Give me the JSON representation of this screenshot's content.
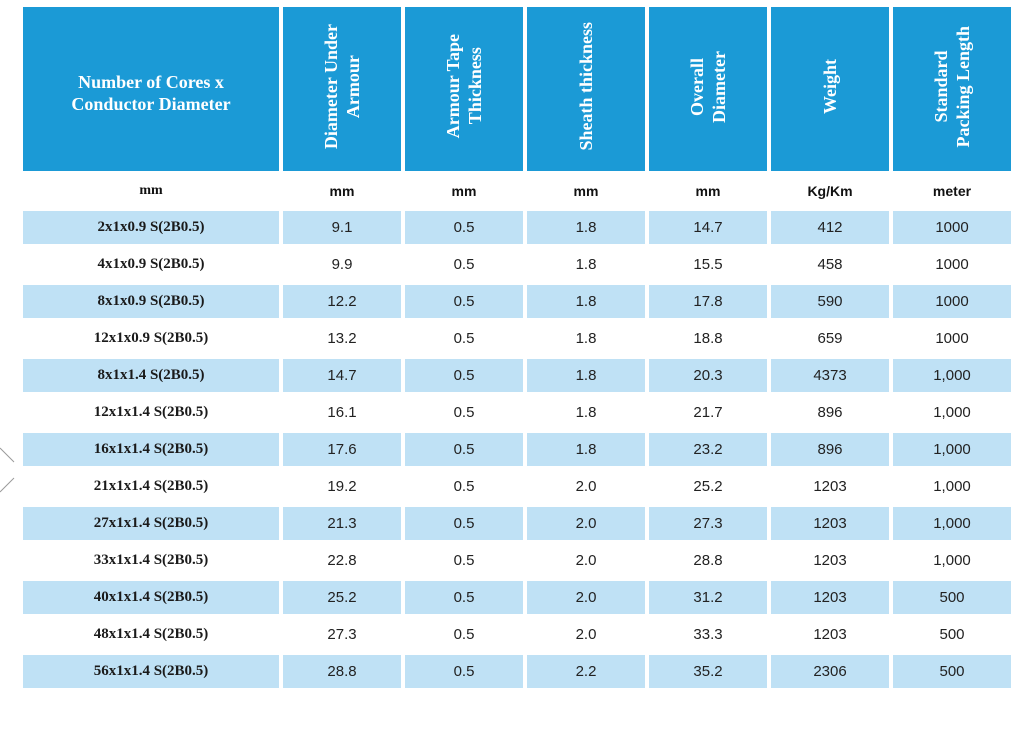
{
  "table": {
    "headers": [
      "Number of Cores x\nConductor Diameter",
      "Diameter Under\nArmour",
      "Armour Tape\nThickness",
      "Sheath thickness",
      "Overall\nDiameter",
      "Weight",
      "Standard\nPacking Length"
    ],
    "units": [
      "mm",
      "mm",
      "mm",
      "mm",
      "mm",
      "Kg/Km",
      "meter"
    ],
    "rows": [
      [
        "2x1x0.9 S(2B0.5)",
        "9.1",
        "0.5",
        "1.8",
        "14.7",
        "412",
        "1000"
      ],
      [
        "4x1x0.9 S(2B0.5)",
        "9.9",
        "0.5",
        "1.8",
        "15.5",
        "458",
        "1000"
      ],
      [
        "8x1x0.9 S(2B0.5)",
        "12.2",
        "0.5",
        "1.8",
        "17.8",
        "590",
        "1000"
      ],
      [
        "12x1x0.9 S(2B0.5)",
        "13.2",
        "0.5",
        "1.8",
        "18.8",
        "659",
        "1000"
      ],
      [
        "8x1x1.4 S(2B0.5)",
        "14.7",
        "0.5",
        "1.8",
        "20.3",
        "4373",
        "1,000"
      ],
      [
        "12x1x1.4 S(2B0.5)",
        "16.1",
        "0.5",
        "1.8",
        "21.7",
        "896",
        "1,000"
      ],
      [
        "16x1x1.4 S(2B0.5)",
        "17.6",
        "0.5",
        "1.8",
        "23.2",
        "896",
        "1,000"
      ],
      [
        "21x1x1.4 S(2B0.5)",
        "19.2",
        "0.5",
        "2.0",
        "25.2",
        "1203",
        "1,000"
      ],
      [
        "27x1x1.4 S(2B0.5)",
        "21.3",
        "0.5",
        "2.0",
        "27.3",
        "1203",
        "1,000"
      ],
      [
        "33x1x1.4 S(2B0.5)",
        "22.8",
        "0.5",
        "2.0",
        "28.8",
        "1203",
        "1,000"
      ],
      [
        "40x1x1.4 S(2B0.5)",
        "25.2",
        "0.5",
        "2.0",
        "31.2",
        "1203",
        "500"
      ],
      [
        "48x1x1.4 S(2B0.5)",
        "27.3",
        "0.5",
        "2.0",
        "33.3",
        "1203",
        "500"
      ],
      [
        "56x1x1.4 S(2B0.5)",
        "28.8",
        "0.5",
        "2.2",
        "35.2",
        "2306",
        "500"
      ]
    ]
  },
  "colors": {
    "header_bg": "#1b9ad6",
    "header_text": "#ffffff",
    "row_shade": "#bfe1f5",
    "row_plain": "#ffffff"
  }
}
